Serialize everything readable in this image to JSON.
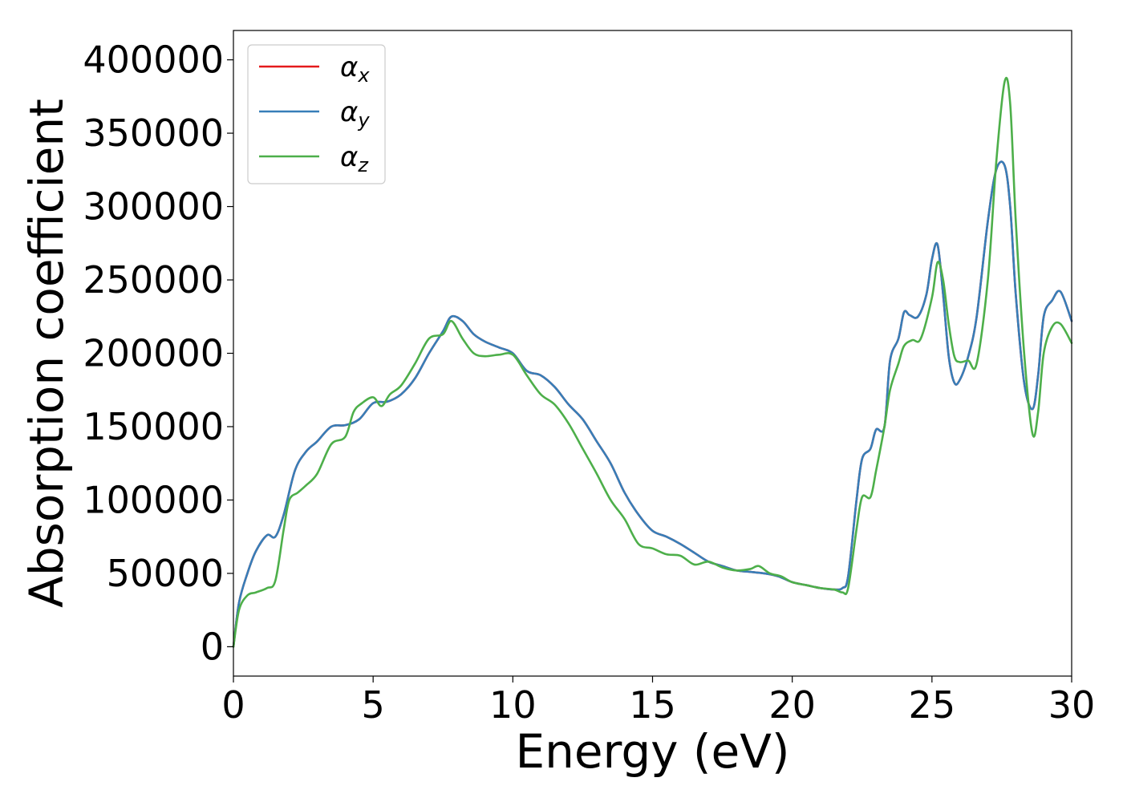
{
  "chart_data": {
    "type": "line",
    "xlabel": "Energy (eV)",
    "ylabel": "Absorption coefficient",
    "xlim": [
      0,
      30
    ],
    "ylim": [
      -20000,
      420000
    ],
    "xticks": [
      "0",
      "5",
      "10",
      "15",
      "20",
      "25",
      "30"
    ],
    "yticks": [
      "0",
      "50000",
      "100000",
      "150000",
      "200000",
      "250000",
      "300000",
      "350000",
      "400000"
    ],
    "legend_position": "top-left",
    "grid": false,
    "series": [
      {
        "name": "αx",
        "symbol": "α",
        "subscript": "x",
        "color": "#e41a1c",
        "x": [
          0,
          0.2,
          0.5,
          0.8,
          1.2,
          1.5,
          1.8,
          2.2,
          2.6,
          3.0,
          3.5,
          4.0,
          4.5,
          5.0,
          5.5,
          6.0,
          6.5,
          7.0,
          7.5,
          7.8,
          8.2,
          8.6,
          9.0,
          9.5,
          10.0,
          10.5,
          11.0,
          11.5,
          12.0,
          12.5,
          13.0,
          13.5,
          14.0,
          14.5,
          15.0,
          15.5,
          16.0,
          16.5,
          17.0,
          17.5,
          18.0,
          18.5,
          19.0,
          19.5,
          20.0,
          20.5,
          21.0,
          21.5,
          21.8,
          22.0,
          22.3,
          22.5,
          22.8,
          23.0,
          23.3,
          23.5,
          23.8,
          24.0,
          24.2,
          24.5,
          24.8,
          25.0,
          25.2,
          25.4,
          25.6,
          25.8,
          26.0,
          26.3,
          26.6,
          27.0,
          27.3,
          27.6,
          27.8,
          28.0,
          28.3,
          28.6,
          28.8,
          29.0,
          29.3,
          29.6,
          30.0
        ],
        "values": [
          0,
          30000,
          50000,
          65000,
          76000,
          75000,
          90000,
          120000,
          133000,
          140000,
          150000,
          151000,
          155000,
          166000,
          167000,
          172000,
          183000,
          200000,
          215000,
          225000,
          222000,
          213000,
          208000,
          204000,
          200000,
          188000,
          185000,
          177000,
          165000,
          155000,
          140000,
          125000,
          105000,
          90000,
          79000,
          75000,
          70000,
          64000,
          58000,
          55000,
          52000,
          51000,
          50000,
          48000,
          44000,
          42000,
          40000,
          39000,
          40000,
          48000,
          100000,
          128000,
          135000,
          148000,
          150000,
          195000,
          210000,
          228000,
          226000,
          225000,
          240000,
          264000,
          274000,
          240000,
          198000,
          180000,
          182000,
          198000,
          225000,
          290000,
          325000,
          328000,
          300000,
          240000,
          180000,
          162000,
          185000,
          225000,
          236000,
          242000,
          222000
        ]
      },
      {
        "name": "αy",
        "symbol": "α",
        "subscript": "y",
        "color": "#377eb8",
        "x": [
          0,
          0.2,
          0.5,
          0.8,
          1.2,
          1.5,
          1.8,
          2.2,
          2.6,
          3.0,
          3.5,
          4.0,
          4.5,
          5.0,
          5.5,
          6.0,
          6.5,
          7.0,
          7.5,
          7.8,
          8.2,
          8.6,
          9.0,
          9.5,
          10.0,
          10.5,
          11.0,
          11.5,
          12.0,
          12.5,
          13.0,
          13.5,
          14.0,
          14.5,
          15.0,
          15.5,
          16.0,
          16.5,
          17.0,
          17.5,
          18.0,
          18.5,
          19.0,
          19.5,
          20.0,
          20.5,
          21.0,
          21.5,
          21.8,
          22.0,
          22.3,
          22.5,
          22.8,
          23.0,
          23.3,
          23.5,
          23.8,
          24.0,
          24.2,
          24.5,
          24.8,
          25.0,
          25.2,
          25.4,
          25.6,
          25.8,
          26.0,
          26.3,
          26.6,
          27.0,
          27.3,
          27.6,
          27.8,
          28.0,
          28.3,
          28.6,
          28.8,
          29.0,
          29.3,
          29.6,
          30.0
        ],
        "values": [
          0,
          30000,
          50000,
          65000,
          76000,
          75000,
          90000,
          120000,
          133000,
          140000,
          150000,
          151000,
          155000,
          166000,
          167000,
          172000,
          183000,
          200000,
          215000,
          225000,
          222000,
          213000,
          208000,
          204000,
          200000,
          188000,
          185000,
          177000,
          165000,
          155000,
          140000,
          125000,
          105000,
          90000,
          79000,
          75000,
          70000,
          64000,
          58000,
          55000,
          52000,
          51000,
          50000,
          48000,
          44000,
          42000,
          40000,
          39000,
          40000,
          48000,
          100000,
          128000,
          135000,
          148000,
          150000,
          195000,
          210000,
          228000,
          226000,
          225000,
          240000,
          264000,
          274000,
          240000,
          198000,
          180000,
          182000,
          198000,
          225000,
          290000,
          325000,
          328000,
          300000,
          240000,
          180000,
          162000,
          185000,
          225000,
          236000,
          242000,
          222000
        ]
      },
      {
        "name": "αz",
        "symbol": "α",
        "subscript": "z",
        "color": "#4daf4a",
        "x": [
          0,
          0.2,
          0.5,
          0.8,
          1.2,
          1.5,
          1.8,
          2.0,
          2.3,
          2.6,
          3.0,
          3.5,
          4.0,
          4.3,
          4.6,
          5.0,
          5.3,
          5.6,
          6.0,
          6.5,
          7.0,
          7.5,
          7.8,
          8.2,
          8.6,
          9.0,
          9.5,
          10.0,
          10.5,
          11.0,
          11.5,
          12.0,
          12.5,
          13.0,
          13.5,
          14.0,
          14.5,
          15.0,
          15.5,
          16.0,
          16.5,
          17.0,
          17.5,
          18.0,
          18.5,
          18.8,
          19.2,
          19.6,
          20.0,
          20.5,
          21.0,
          21.5,
          21.8,
          22.0,
          22.3,
          22.5,
          22.8,
          23.0,
          23.3,
          23.5,
          23.8,
          24.0,
          24.3,
          24.6,
          25.0,
          25.2,
          25.4,
          25.6,
          25.8,
          26.0,
          26.3,
          26.6,
          27.0,
          27.3,
          27.6,
          27.8,
          28.0,
          28.3,
          28.6,
          28.8,
          29.0,
          29.3,
          29.6,
          30.0
        ],
        "values": [
          0,
          25000,
          35000,
          37000,
          40000,
          45000,
          80000,
          100000,
          105000,
          110000,
          118000,
          138000,
          143000,
          160000,
          166000,
          170000,
          164000,
          172000,
          178000,
          193000,
          210000,
          213000,
          222000,
          210000,
          200000,
          198000,
          199000,
          199000,
          185000,
          172000,
          165000,
          152000,
          135000,
          118000,
          100000,
          87000,
          70000,
          67000,
          63000,
          62000,
          56000,
          58000,
          54000,
          52000,
          53000,
          55000,
          50000,
          48000,
          44000,
          42000,
          40000,
          39000,
          37000,
          40000,
          80000,
          102000,
          102000,
          120000,
          150000,
          175000,
          193000,
          205000,
          209000,
          210000,
          238000,
          262000,
          250000,
          220000,
          198000,
          194000,
          195000,
          193000,
          250000,
          330000,
          385000,
          370000,
          290000,
          200000,
          145000,
          160000,
          200000,
          218000,
          220000,
          207000
        ]
      }
    ]
  }
}
